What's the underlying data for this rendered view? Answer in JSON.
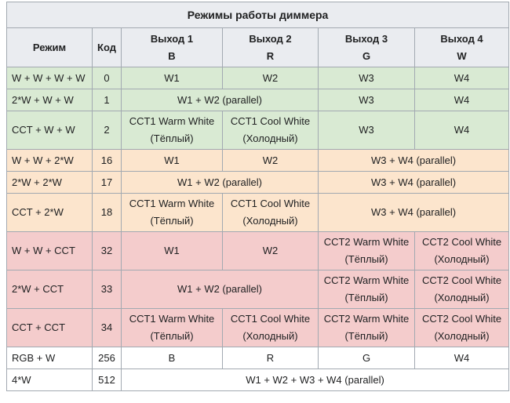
{
  "table": {
    "caption": "Режимы работы диммера",
    "header": [
      [
        "Режим"
      ],
      [
        "Код"
      ],
      [
        "Выход 1",
        "B"
      ],
      [
        "Выход 2",
        "R"
      ],
      [
        "Выход 3",
        "G"
      ],
      [
        "Выход 4",
        "W"
      ]
    ],
    "rows": [
      [
        "W + W + W + W",
        0,
        "W1",
        "W2",
        "W3",
        "W4"
      ],
      [
        "2*W + W + W",
        1,
        "W1 + W2 (parallel)",
        "W3",
        "W4"
      ],
      [
        "CCT + W + W",
        2,
        [
          "CCT1 Warm White",
          "(Тёплый)"
        ],
        [
          "CCT1 Cool White",
          "(Холодный)"
        ],
        "W3",
        "W4"
      ],
      [
        "W + W + 2*W",
        16,
        "W1",
        "W2",
        "W3 + W4 (parallel)"
      ],
      [
        "2*W + 2*W",
        17,
        "W1 + W2 (parallel)",
        "W3 + W4 (parallel)"
      ],
      [
        "CCT + 2*W",
        18,
        [
          "CCT1 Warm White",
          "(Тёплый)"
        ],
        [
          "CCT1 Cool White",
          "(Холодный)"
        ],
        "W3 + W4 (parallel)"
      ],
      [
        "W + W + CCT",
        32,
        "W1",
        "W2",
        [
          "CCT2 Warm White",
          "(Тёплый)"
        ],
        [
          "CCT2 Cool White",
          "(Холодный)"
        ]
      ],
      [
        "2*W + CCT",
        33,
        "W1 + W2 (parallel)",
        [
          "CCT2 Warm White",
          "(Тёплый)"
        ],
        [
          "CCT2 Cool White",
          "(Холодный)"
        ]
      ],
      [
        "CCT + CCT",
        34,
        [
          "CCT1 Warm White",
          "(Тёплый)"
        ],
        [
          "CCT1 Cool White",
          "(Холодный)"
        ],
        [
          "CCT2 Warm White",
          "(Тёплый)"
        ],
        [
          "CCT2 Cool White",
          "(Холодный)"
        ]
      ],
      [
        "RGB + W",
        256,
        "B",
        "R",
        "G",
        "W4"
      ],
      [
        "4*W",
        512,
        "W1 + W2 + W3 + W4 (parallel)"
      ]
    ]
  }
}
